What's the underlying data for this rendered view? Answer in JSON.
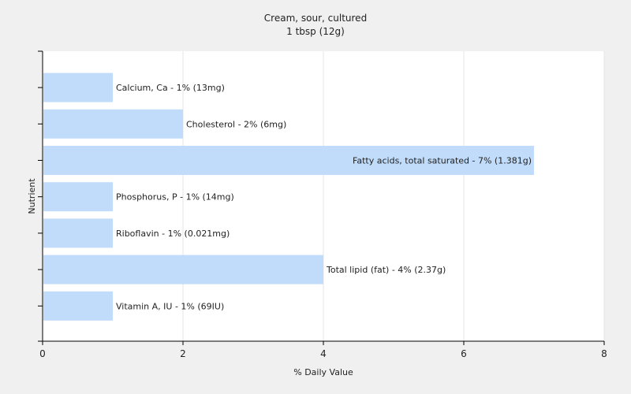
{
  "chart_data": {
    "type": "bar",
    "orientation": "horizontal",
    "title": "Cream, sour, cultured",
    "subtitle": "1 tbsp (12g)",
    "xlabel": "% Daily Value",
    "ylabel": "Nutrient",
    "xlim": [
      0,
      8
    ],
    "x_ticks": [
      "0",
      "2",
      "4",
      "6",
      "8"
    ],
    "grid": "vertical",
    "bar_color": "#c0dcfa",
    "background": "#f0f0f0",
    "plot_background": "#ffffff",
    "categories": [
      "Calcium, Ca",
      "Cholesterol",
      "Fatty acids, total saturated",
      "Phosphorus, P",
      "Riboflavin",
      "Total lipid (fat)",
      "Vitamin A, IU"
    ],
    "values": [
      1,
      2,
      7,
      1,
      1,
      4,
      1
    ],
    "data_labels": [
      "Calcium, Ca - 1% (13mg)",
      "Cholesterol - 2% (6mg)",
      "Fatty acids, total saturated - 7% (1.381g)",
      "Phosphorus, P - 1% (14mg)",
      "Riboflavin - 1% (0.021mg)",
      "Total lipid (fat) - 4% (2.37g)",
      "Vitamin A, IU - 1% (69IU)"
    ]
  }
}
